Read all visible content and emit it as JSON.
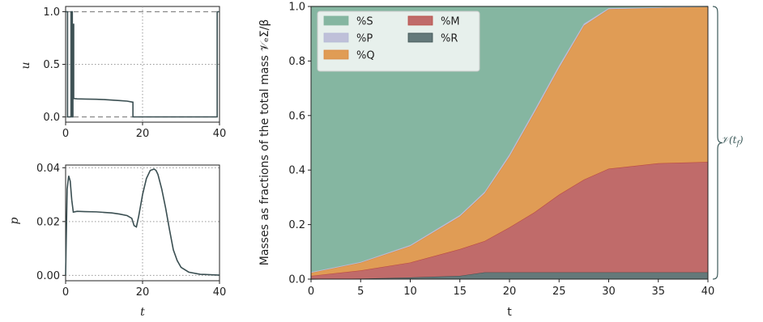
{
  "chart_data": [
    {
      "id": "u-plot",
      "type": "line",
      "ylabel": "u",
      "xlim": [
        0,
        40
      ],
      "ylim": [
        -0.05,
        1.05
      ],
      "xticks": [
        "0",
        "20",
        "40"
      ],
      "yticks": [
        "0.0",
        "0.5",
        "1.0"
      ],
      "bounds": [
        0,
        1
      ],
      "color": "#3b4f52",
      "x": [
        0,
        0.5,
        0.5,
        1.4,
        1.4,
        1.75,
        1.75,
        1.9,
        1.9,
        2.1,
        2.1,
        3,
        5,
        8,
        10,
        12,
        14,
        16,
        17.5,
        17.5,
        39.4,
        39.4,
        40
      ],
      "y": [
        1,
        1,
        0,
        0,
        1,
        1,
        0,
        0,
        0.88,
        0.88,
        0.175,
        0.172,
        0.17,
        0.168,
        0.165,
        0.16,
        0.155,
        0.15,
        0.14,
        0,
        0,
        1,
        1
      ]
    },
    {
      "id": "p-plot",
      "type": "line",
      "ylabel": "p",
      "xlabel": "t",
      "xlim": [
        0,
        40
      ],
      "ylim": [
        -0.002,
        0.041
      ],
      "xticks": [
        "0",
        "20",
        "40"
      ],
      "yticks": [
        "0.00",
        "0.02",
        "0.04"
      ],
      "color": "#3b4f52",
      "x": [
        0,
        0.4,
        0.8,
        1.2,
        1.6,
        2,
        3,
        5,
        8,
        10,
        12,
        14,
        16,
        17.2,
        17.8,
        18.4,
        19,
        20,
        21,
        22,
        23,
        23.5,
        24,
        25,
        26,
        27,
        28,
        29,
        30,
        32,
        35,
        40
      ],
      "y": [
        0,
        0.032,
        0.037,
        0.035,
        0.028,
        0.0235,
        0.0238,
        0.0237,
        0.0236,
        0.0234,
        0.0232,
        0.0228,
        0.0222,
        0.0212,
        0.0185,
        0.018,
        0.022,
        0.03,
        0.036,
        0.039,
        0.0395,
        0.039,
        0.0375,
        0.032,
        0.025,
        0.017,
        0.0095,
        0.0055,
        0.003,
        0.0012,
        0.0004,
        0.0001
      ]
    },
    {
      "id": "mass-plot",
      "type": "area",
      "ylabel": "Masses as fractions of the total mass 𝒱ₑΣ/β",
      "xlabel": "t",
      "xlim": [
        0,
        40
      ],
      "ylim": [
        0,
        1.0
      ],
      "xticks": [
        "0",
        "5",
        "10",
        "15",
        "20",
        "25",
        "30",
        "35",
        "40"
      ],
      "yticks": [
        "0.0",
        "0.2",
        "0.4",
        "0.6",
        "0.8",
        "1.0"
      ],
      "legend": "top-left",
      "x": [
        0,
        5,
        10,
        15,
        17.5,
        20,
        22.5,
        25,
        27.5,
        30,
        35,
        40
      ],
      "series": [
        {
          "name": "%R",
          "key": "R",
          "color": "#64797a",
          "line": "#3d5151",
          "values": [
            0,
            0.002,
            0.006,
            0.012,
            0.025,
            0.025,
            0.025,
            0.025,
            0.025,
            0.025,
            0.025,
            0.025
          ]
        },
        {
          "name": "%M",
          "key": "M",
          "color": "#c06b6a",
          "line": "#b94a44",
          "values": [
            0.012,
            0.03,
            0.055,
            0.098,
            0.115,
            0.165,
            0.22,
            0.285,
            0.34,
            0.38,
            0.4,
            0.405
          ]
        },
        {
          "name": "%Q",
          "key": "Q",
          "color": "#e09c55",
          "line": "#d98a45",
          "values": [
            0.011,
            0.028,
            0.06,
            0.12,
            0.175,
            0.26,
            0.365,
            0.465,
            0.565,
            0.585,
            0.57,
            0.57
          ]
        },
        {
          "name": "%P",
          "key": "P",
          "color": "#bfc0d9",
          "line": "#b5b8d5",
          "values": [
            0.003,
            0.003,
            0.004,
            0.005,
            0.006,
            0.008,
            0.009,
            0.009,
            0.007,
            0.004,
            0.002,
            0.0
          ]
        },
        {
          "name": "%S",
          "key": "S",
          "color": "#85b6a1",
          "line": "#85b6a1",
          "values": [
            0.974,
            0.937,
            0.875,
            0.765,
            0.679,
            0.542,
            0.381,
            0.216,
            0.063,
            0.006,
            0.003,
            0.0
          ]
        }
      ],
      "legend_order": [
        "S",
        "P",
        "Q",
        "M",
        "R"
      ],
      "brace_label": "𝒱(t_f)"
    }
  ]
}
